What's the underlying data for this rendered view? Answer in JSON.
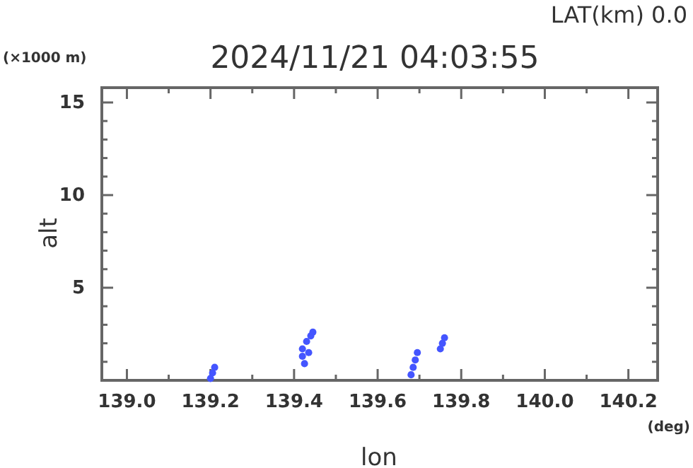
{
  "chart_data": {
    "type": "scatter",
    "title": "2024/11/21 04:03:55",
    "subtitle": "LAT(km) 0.0",
    "xlabel": "lon",
    "ylabel": "alt",
    "annotations": [
      "(×1000 m)",
      "(deg)"
    ],
    "xlim": [
      138.94,
      140.27
    ],
    "ylim": [
      0,
      15.8
    ],
    "xticks": [
      {
        "value": 139.0,
        "label": "139.0"
      },
      {
        "value": 139.1,
        "label": null
      },
      {
        "value": 139.2,
        "label": "139.2"
      },
      {
        "value": 139.3,
        "label": null
      },
      {
        "value": 139.4,
        "label": "139.4"
      },
      {
        "value": 139.5,
        "label": null
      },
      {
        "value": 139.6,
        "label": "139.6"
      },
      {
        "value": 139.7,
        "label": null
      },
      {
        "value": 139.8,
        "label": "139.8"
      },
      {
        "value": 139.9,
        "label": null
      },
      {
        "value": 140.0,
        "label": "140.0"
      },
      {
        "value": 140.1,
        "label": null
      },
      {
        "value": 140.2,
        "label": "140.2"
      }
    ],
    "yticks": [
      {
        "value": 1,
        "label": null
      },
      {
        "value": 2,
        "label": null
      },
      {
        "value": 3,
        "label": null
      },
      {
        "value": 4,
        "label": null
      },
      5,
      {
        "value": 6,
        "label": null
      },
      {
        "value": 7,
        "label": null
      },
      {
        "value": 8,
        "label": null
      },
      {
        "value": 9,
        "label": null
      },
      10,
      {
        "value": 11,
        "label": null
      },
      {
        "value": 12,
        "label": null
      },
      {
        "value": 13,
        "label": null
      },
      {
        "value": 14,
        "label": null
      },
      15
    ],
    "grid": false,
    "marker": "circle",
    "series": [
      {
        "color": "#4455ff",
        "x": [
          139.2,
          139.205,
          139.21,
          139.425,
          139.42,
          139.42,
          139.43,
          139.44,
          139.445,
          139.435,
          139.68,
          139.685,
          139.69,
          139.695,
          139.75,
          139.755,
          139.76
        ],
        "values": [
          0.1,
          0.4,
          0.7,
          0.9,
          1.3,
          1.7,
          2.1,
          2.4,
          2.6,
          1.5,
          0.3,
          0.7,
          1.1,
          1.5,
          1.7,
          2.0,
          2.3
        ]
      }
    ]
  }
}
